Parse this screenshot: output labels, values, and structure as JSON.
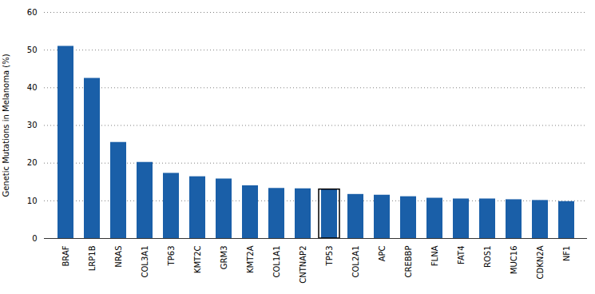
{
  "chart_data": {
    "type": "bar",
    "categories": [
      "BRAF",
      "LRP1B",
      "NRAS",
      "COL3A1",
      "TP63",
      "KMT2C",
      "GRM3",
      "KMT2A",
      "COL1A1",
      "CNTNAP2",
      "TP53",
      "COL2A1",
      "APC",
      "CREBBP",
      "FLNA",
      "FAT4",
      "ROS1",
      "MUC16",
      "CDKN2A",
      "NF1"
    ],
    "values": [
      51,
      42.5,
      25.5,
      20.2,
      17.3,
      16.4,
      15.8,
      14.0,
      13.3,
      13.2,
      13.0,
      11.7,
      11.5,
      11.1,
      10.7,
      10.5,
      10.5,
      10.3,
      10.1,
      9.8
    ],
    "color": "#1a5fa8",
    "ylabel": "Genetic Mutations in Melanoma (%)",
    "ylim": [
      0,
      60
    ],
    "yticks": [
      0,
      10,
      20,
      30,
      40,
      50,
      60
    ],
    "grid": true,
    "highlight": "TP53"
  }
}
